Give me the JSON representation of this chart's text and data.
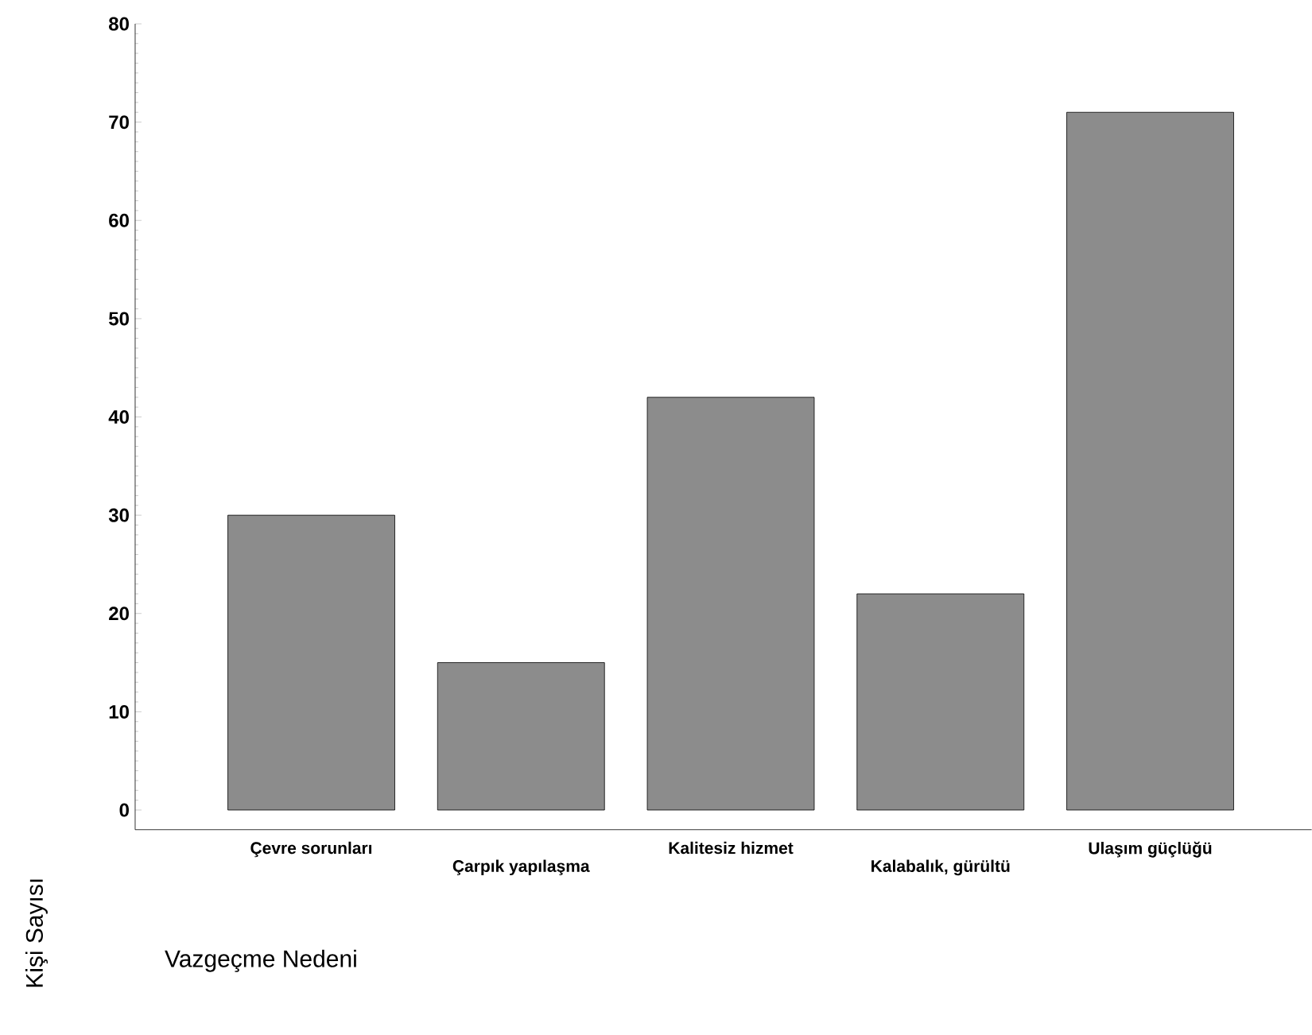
{
  "chart_data": {
    "type": "bar",
    "xlabel": "Vazgeçme Nedeni",
    "ylabel": "Kişi Sayısı",
    "categories": [
      "Çevre sorunları",
      "Çarpık yapılaşma",
      "Kalitesiz hizmet",
      "Kalabalık, gürültü",
      "Ulaşım güçlüğü"
    ],
    "values": [
      30,
      15,
      42,
      22,
      71
    ],
    "color": "#8c8c8c",
    "ylim": [
      -2,
      80
    ],
    "yticks": [
      0,
      10,
      20,
      30,
      40,
      50,
      60,
      70,
      80
    ],
    "grid": false
  }
}
